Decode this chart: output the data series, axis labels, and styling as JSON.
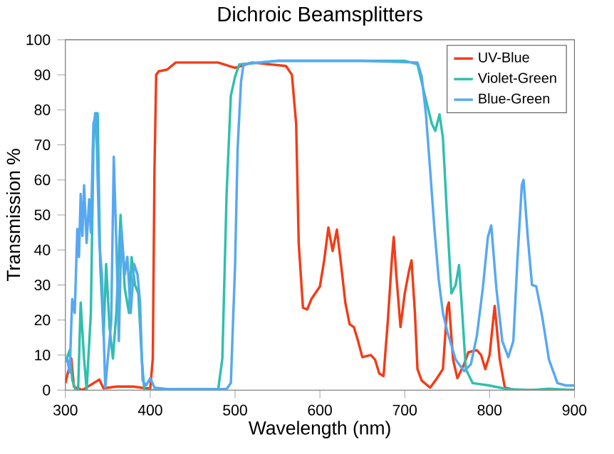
{
  "chart_data": {
    "type": "line",
    "title": "Dichroic Beamsplitters",
    "xlabel": "Wavelength (nm)",
    "ylabel": "Transmission %",
    "xlim": [
      300,
      900
    ],
    "ylim": [
      0,
      100
    ],
    "xticks": [
      300,
      400,
      500,
      600,
      700,
      800,
      900
    ],
    "yticks": [
      0,
      10,
      20,
      30,
      40,
      50,
      60,
      70,
      80,
      90,
      100
    ],
    "grid": false,
    "legend": "top right",
    "marker": "none",
    "line_style": "solid",
    "series": [
      {
        "name": "UV-Blue",
        "color": "#f23c16",
        "x": [
          300,
          307,
          310,
          320,
          340,
          345,
          360,
          380,
          395,
          400,
          403,
          405,
          407,
          410,
          420,
          430,
          450,
          480,
          500,
          520,
          560,
          567,
          572,
          575,
          580,
          585,
          590,
          600,
          605,
          610,
          615,
          620,
          625,
          630,
          635,
          640,
          645,
          650,
          660,
          665,
          670,
          675,
          680,
          685,
          687,
          690,
          695,
          700,
          705,
          708,
          712,
          715,
          720,
          730,
          738,
          745,
          750,
          752,
          757,
          762,
          770,
          775,
          785,
          790,
          795,
          800,
          806,
          812,
          818,
          830,
          900
        ],
        "values": [
          2,
          9,
          1,
          0,
          3,
          0.5,
          1,
          1,
          0.5,
          0.5,
          9,
          63,
          90,
          91,
          91.5,
          93.5,
          93.5,
          93.5,
          92,
          93.5,
          92.5,
          90,
          76,
          42,
          23.5,
          23,
          26,
          29.6,
          37,
          46.4,
          39.7,
          45.8,
          35.7,
          24.9,
          18.8,
          18,
          14,
          9.4,
          10,
          8.7,
          4.7,
          4,
          19.5,
          38,
          43.7,
          33,
          18,
          27.6,
          34,
          37,
          22,
          6,
          2.7,
          0.7,
          3.4,
          6,
          23.5,
          25,
          8.7,
          3.4,
          7.4,
          10.8,
          11.4,
          10,
          6,
          10,
          24,
          8.7,
          0.7,
          0,
          0
        ]
      },
      {
        "name": "Violet-Green",
        "color": "#2fbfae",
        "x": [
          300,
          303,
          305,
          308,
          312,
          315,
          318,
          322,
          325,
          330,
          333,
          335,
          338,
          341,
          345,
          348,
          352,
          356,
          360,
          365,
          370,
          375,
          378,
          382,
          386,
          390,
          393,
          480,
          485,
          490,
          495,
          500,
          505,
          550,
          600,
          700,
          715,
          725,
          732,
          736,
          741,
          745,
          750,
          755,
          760,
          764,
          767,
          772,
          780,
          800,
          820,
          850,
          870,
          900
        ],
        "values": [
          8,
          10,
          11.4,
          3,
          0,
          0,
          25,
          9,
          0,
          22,
          69,
          79,
          79,
          36,
          15.5,
          36,
          18,
          9,
          22,
          50,
          29,
          22,
          38,
          30,
          27.6,
          9,
          0,
          0,
          9,
          56,
          84,
          89.5,
          93,
          94,
          94,
          94,
          93,
          82.8,
          76,
          74,
          78.7,
          72,
          49,
          27.6,
          30,
          35.7,
          25,
          6,
          2,
          1.3,
          0.3,
          0,
          0.4,
          0
        ]
      },
      {
        "name": "Blue-Green",
        "color": "#56a8f4",
        "x": [
          300,
          302,
          305,
          308,
          311,
          314,
          316,
          318,
          320,
          322,
          325,
          328,
          330,
          333,
          336,
          340,
          343,
          347,
          350,
          354,
          357,
          360,
          363,
          366,
          370,
          373,
          377,
          381,
          385,
          388,
          391,
          395,
          400,
          405,
          420,
          490,
          495,
          500,
          503,
          507,
          510,
          550,
          650,
          715,
          720,
          725,
          730,
          735,
          740,
          745,
          750,
          760,
          770,
          778,
          785,
          792,
          798,
          802,
          808,
          815,
          822,
          828,
          833,
          838,
          840,
          845,
          850,
          855,
          862,
          870,
          880,
          890,
          900
        ],
        "values": [
          8,
          9,
          5,
          26,
          22,
          46,
          38,
          56,
          44,
          58.5,
          42,
          54.5,
          45,
          76,
          79,
          42,
          33,
          0.7,
          9,
          19.5,
          66.6,
          42,
          14,
          46,
          33,
          38,
          22,
          36,
          33,
          25,
          2.7,
          1.3,
          3.4,
          0.7,
          0.3,
          0.3,
          2,
          35.7,
          69,
          88,
          93,
          94,
          94,
          93.5,
          89.5,
          78.7,
          62.6,
          46,
          31.6,
          22,
          16.8,
          8.7,
          5.4,
          7.4,
          15.5,
          29,
          43.7,
          47,
          29,
          14,
          9.4,
          14,
          38,
          58.5,
          60,
          43.7,
          30,
          29.6,
          21,
          8.7,
          2,
          1.3,
          1.3
        ]
      }
    ]
  }
}
